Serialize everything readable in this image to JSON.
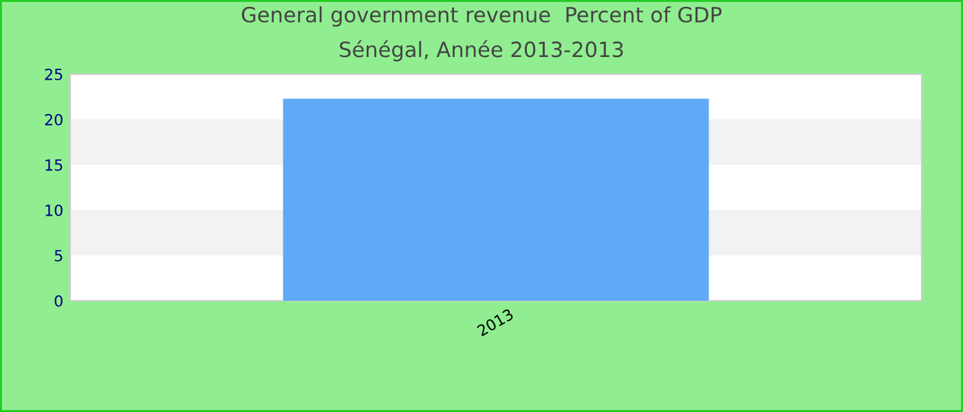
{
  "chart_data": {
    "type": "bar",
    "title": "General government revenue  Percent of GDP",
    "subtitle": "Sénégal, Année 2013-2013",
    "categories": [
      "2013"
    ],
    "values": [
      22.3
    ],
    "color": "#60a9f6",
    "ylim": [
      0,
      25
    ],
    "yticks": [
      0,
      5,
      10,
      15,
      20,
      25
    ]
  }
}
